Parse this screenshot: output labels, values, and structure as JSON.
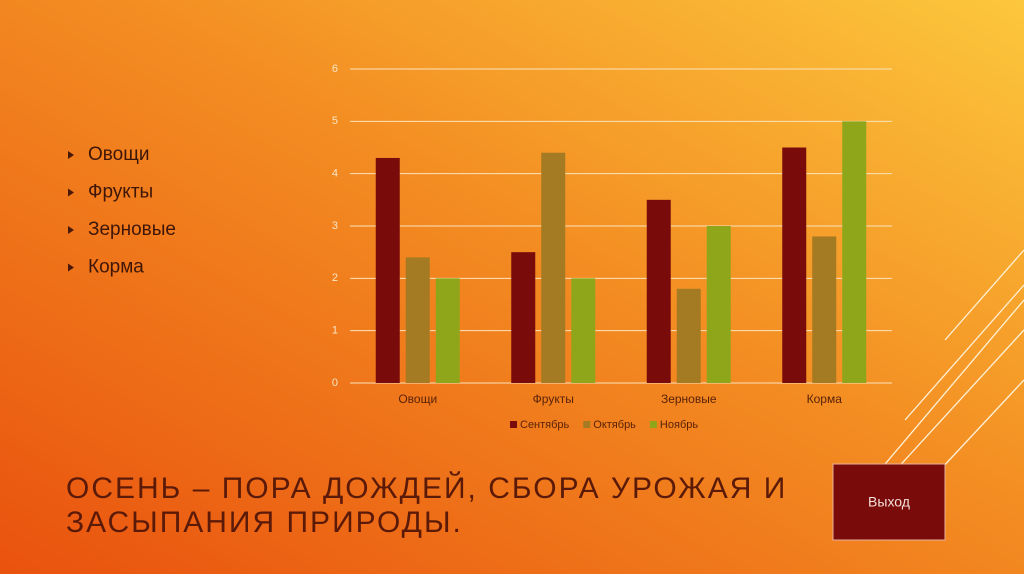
{
  "bullets": [
    "Овощи",
    "Фрукты",
    "Зерновые",
    "Корма"
  ],
  "heading": [
    "ОСЕНЬ – ПОРА ДОЖДЕЙ, СБОРА УРОЖАЯ И",
    "ЗАСЫПАНИЯ ПРИРОДЫ."
  ],
  "button": "Выход",
  "chart_data": {
    "type": "bar",
    "categories": [
      "Овощи",
      "Фрукты",
      "Зерновые",
      "Корма"
    ],
    "series": [
      {
        "name": "Сентябрь",
        "color": "#7a0b0b",
        "values": [
          4.3,
          2.5,
          3.5,
          4.5
        ]
      },
      {
        "name": "Октябрь",
        "color": "#a47a22",
        "values": [
          2.4,
          4.4,
          1.8,
          2.8
        ]
      },
      {
        "name": "Ноябрь",
        "color": "#8fa61a",
        "values": [
          2,
          2,
          3,
          5
        ]
      }
    ],
    "ylim": [
      0,
      6
    ],
    "yticks": [
      0,
      1,
      2,
      3,
      4,
      5,
      6
    ],
    "grid": true,
    "legend": "bottom"
  }
}
